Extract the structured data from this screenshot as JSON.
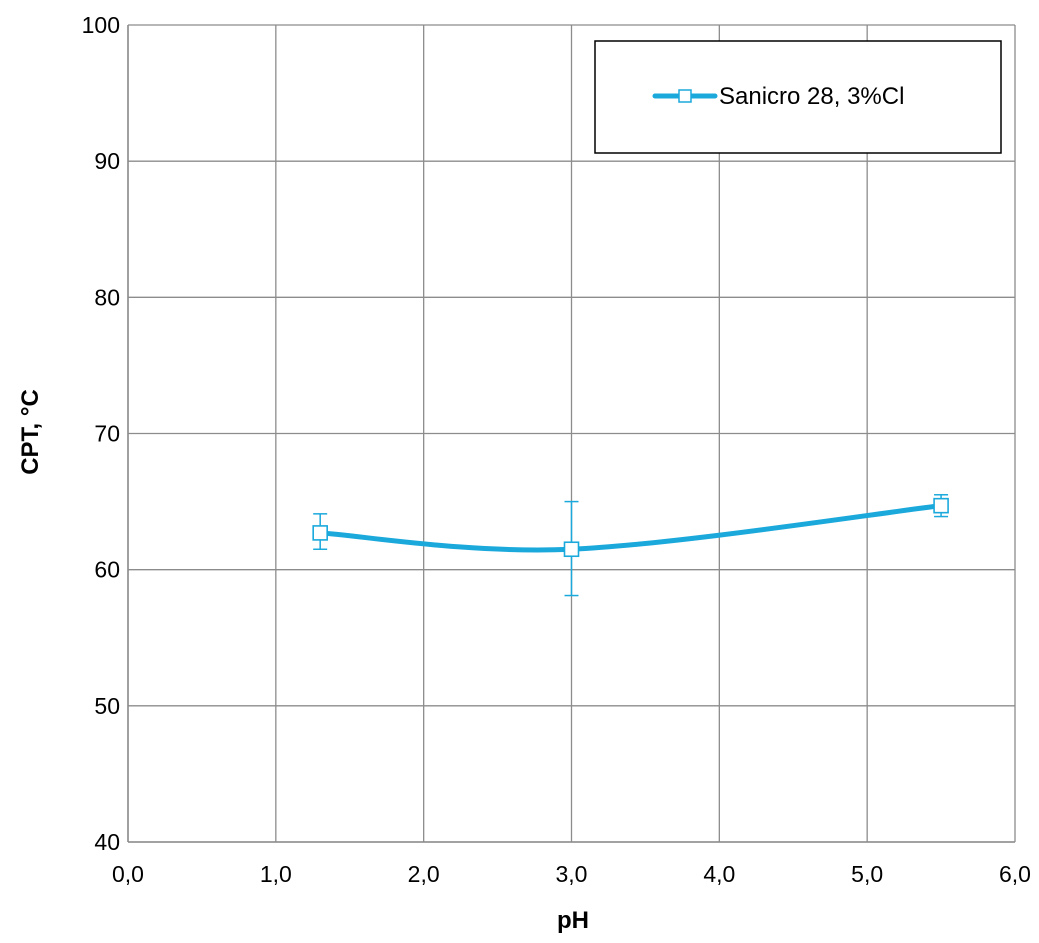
{
  "chart_data": {
    "type": "line",
    "title": "",
    "xlabel": "pH",
    "ylabel": "CPT, °C",
    "xlim": [
      0,
      6
    ],
    "ylim": [
      40,
      100
    ],
    "x_ticks": [
      0,
      1,
      2,
      3,
      4,
      5,
      6
    ],
    "x_tick_labels": [
      "0,0",
      "1,0",
      "2,0",
      "3,0",
      "4,0",
      "5,0",
      "6,0"
    ],
    "y_ticks": [
      40,
      50,
      60,
      70,
      80,
      90,
      100
    ],
    "y_tick_labels": [
      "40",
      "50",
      "60",
      "70",
      "80",
      "90",
      "100"
    ],
    "grid": true,
    "legend_position": "top-right",
    "series": [
      {
        "name": "Sanicro 28, 3%Cl",
        "color": "#1ba9dc",
        "marker": "square",
        "smooth": true,
        "points": [
          {
            "x": 1.3,
            "y": 62.7,
            "err_low": 1.2,
            "err_high": 1.4
          },
          {
            "x": 3.0,
            "y": 61.5,
            "err_low": 3.4,
            "err_high": 3.5
          },
          {
            "x": 5.5,
            "y": 64.7,
            "err_low": 0.8,
            "err_high": 0.8
          }
        ]
      }
    ]
  }
}
